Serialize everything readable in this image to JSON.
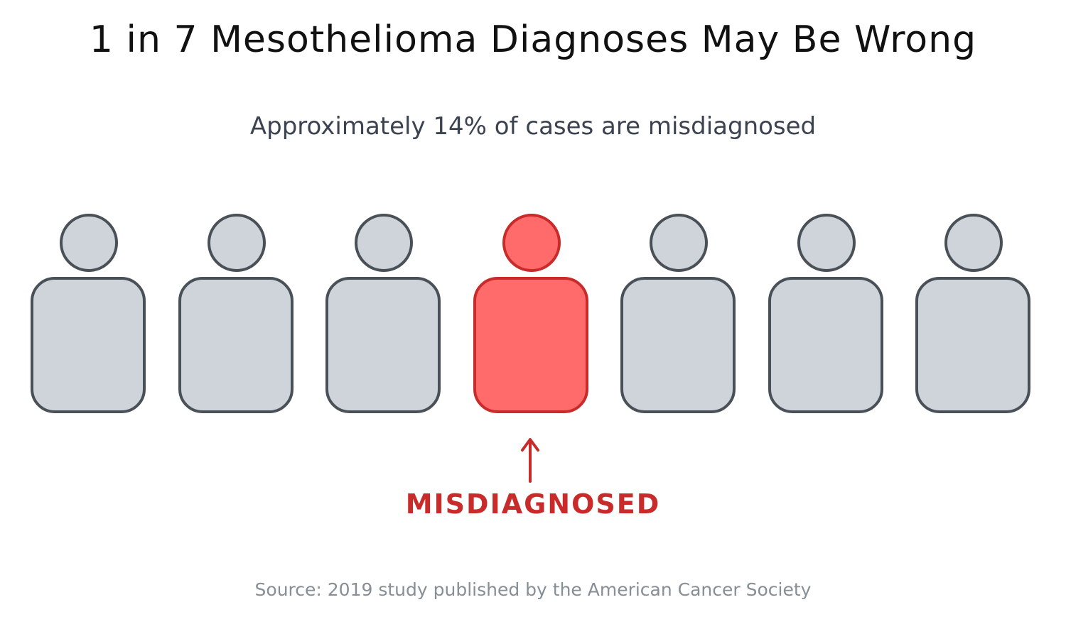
{
  "title": "1 in 7 Mesothelioma Diagnoses May Be Wrong",
  "subtitle": "Approximately 14% of cases are misdiagnosed",
  "people": [
    {
      "highlighted": false
    },
    {
      "highlighted": false
    },
    {
      "highlighted": false
    },
    {
      "highlighted": true
    },
    {
      "highlighted": false
    },
    {
      "highlighted": false
    },
    {
      "highlighted": false
    }
  ],
  "highlight_label": "MISDIAGNOSED",
  "source": "Source: 2019 study published by the American Cancer Society",
  "colors": {
    "person_fill": "#ced4da",
    "person_stroke": "#495057",
    "highlight_fill": "#ff6b6b",
    "highlight_stroke": "#c92a2a",
    "label": "#c92a2a",
    "source_text": "#868e96"
  },
  "icons": {
    "person": "person-icon",
    "arrow": "up-arrow-icon"
  }
}
